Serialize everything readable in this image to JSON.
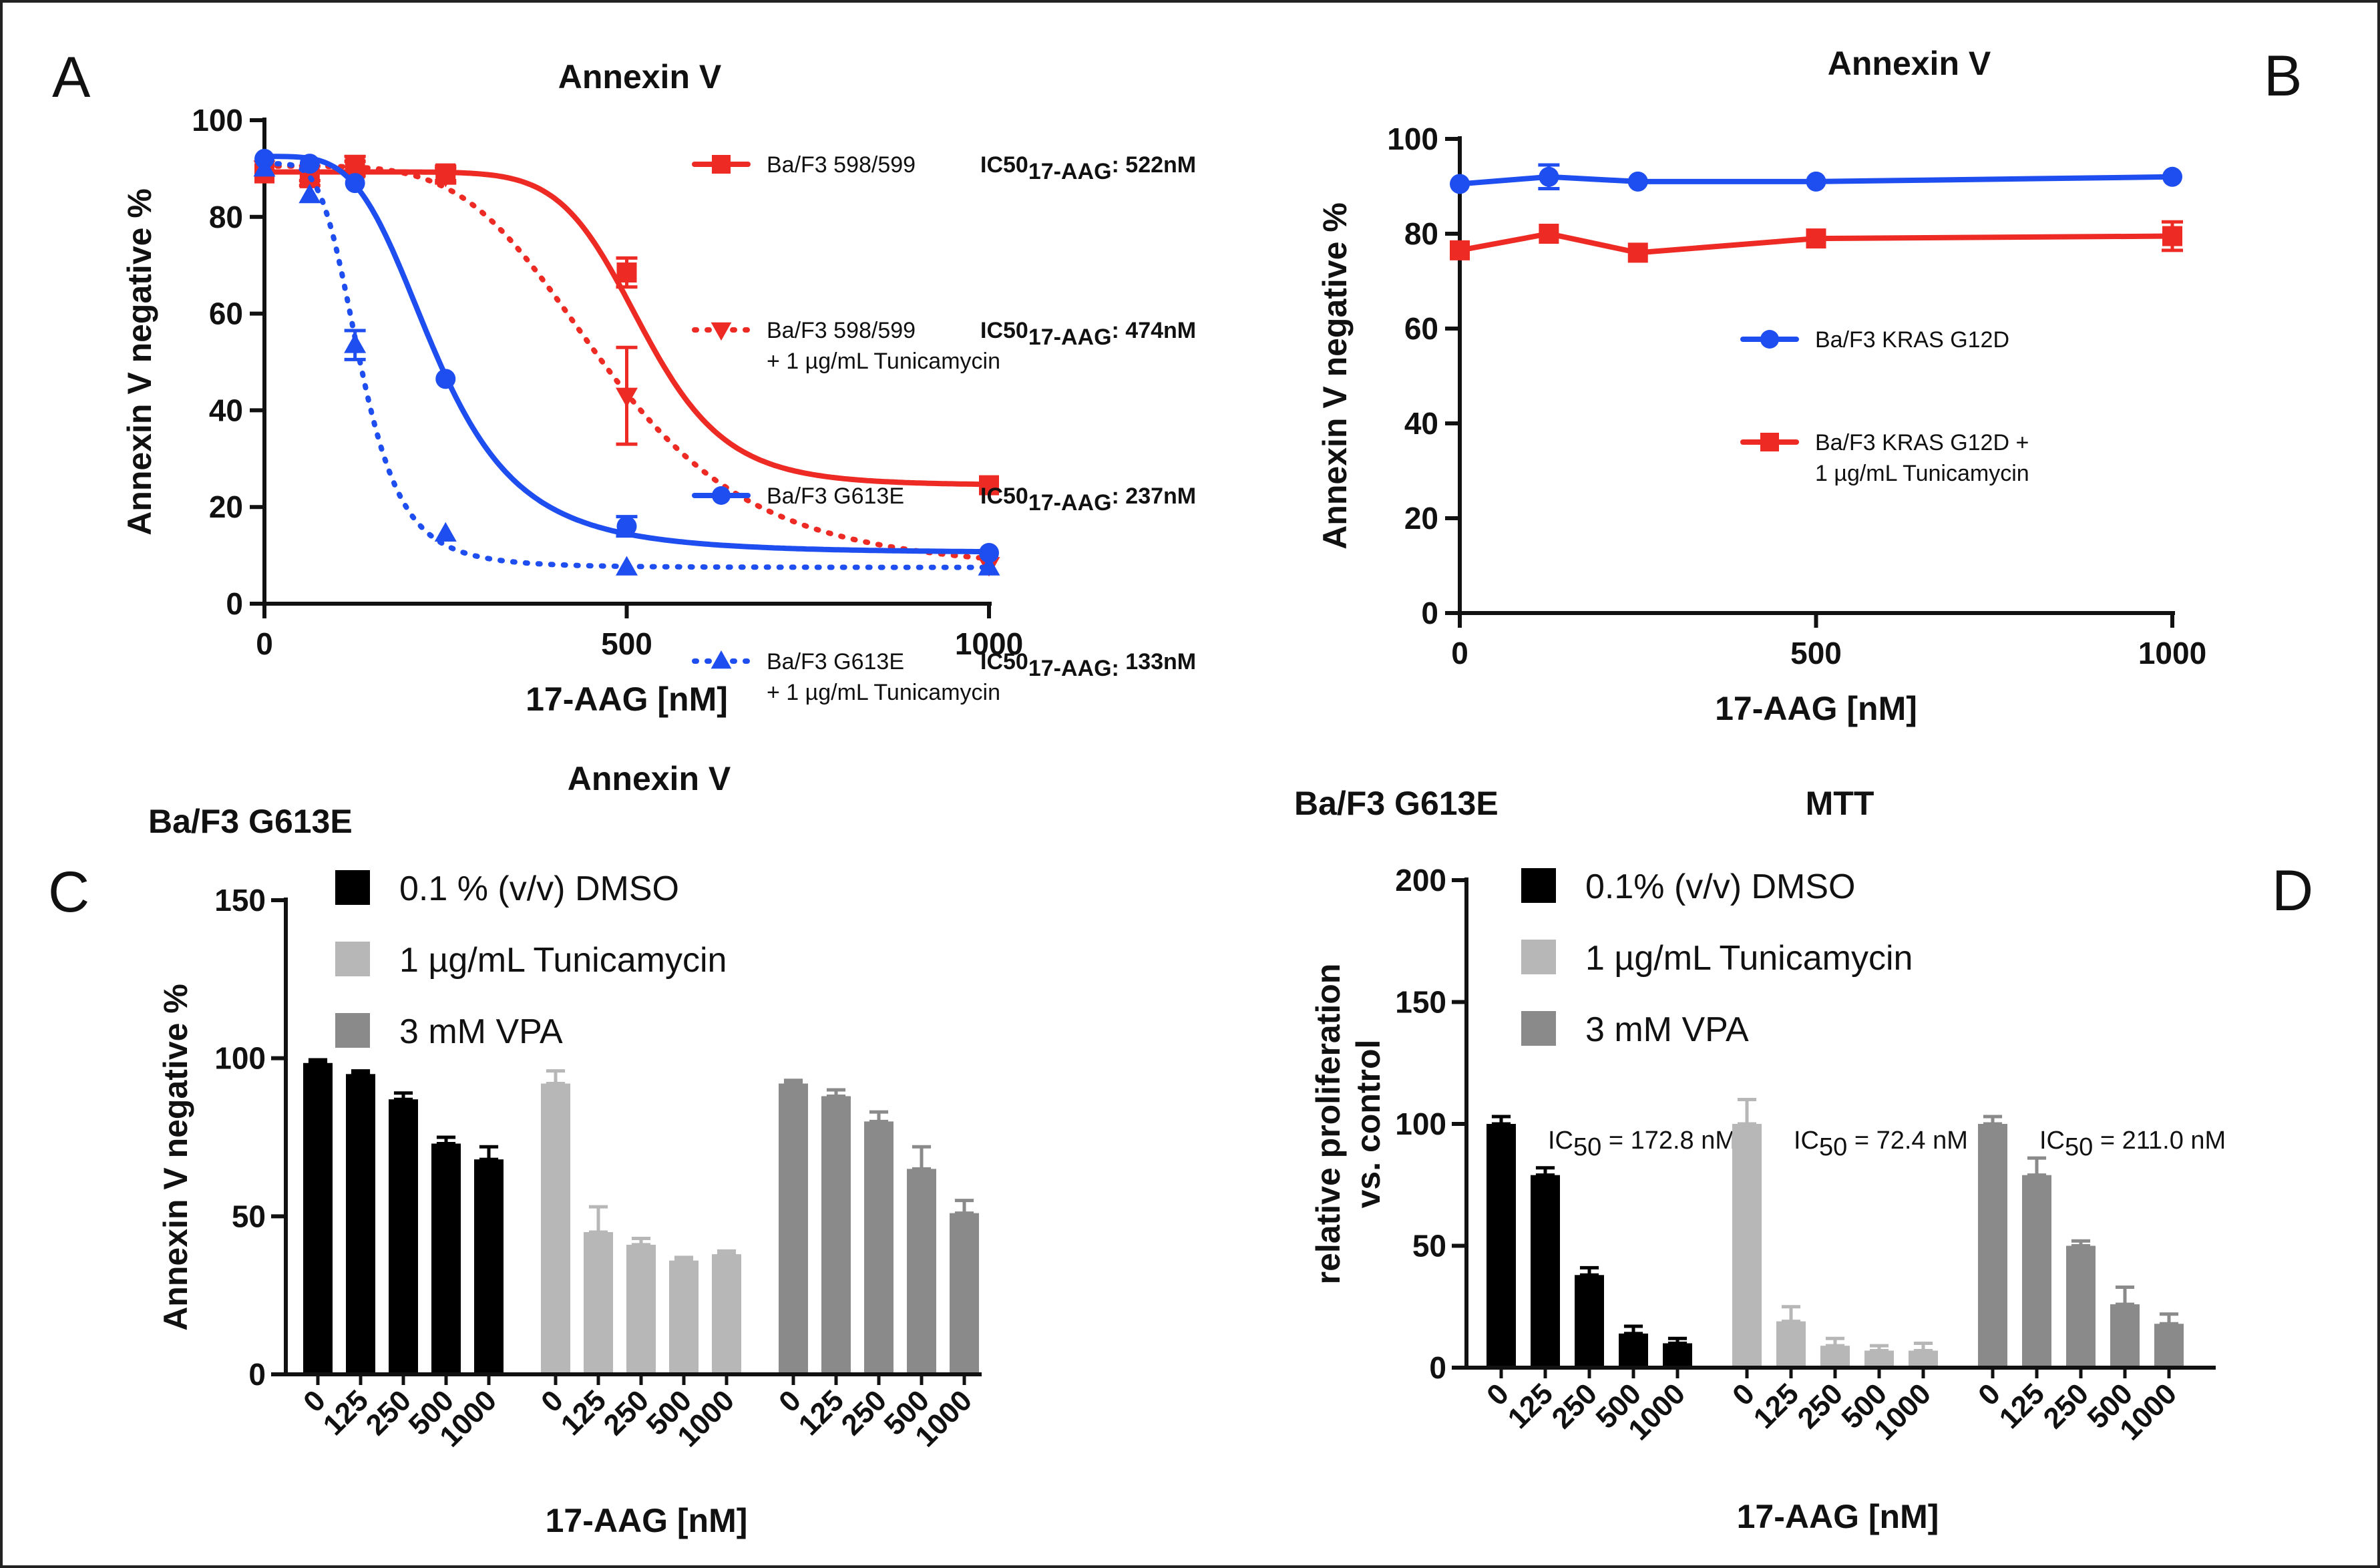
{
  "colors": {
    "red": "#ee2a24",
    "blue": "#1f4ef0",
    "black": "#000000",
    "light_gray": "#b7b7b7",
    "dark_gray": "#8a8a8a"
  },
  "chart_data": [
    {
      "id": "A",
      "panel_label": "A",
      "type": "line",
      "title": "Annexin V",
      "xlabel": "17-AAG [nM]",
      "ylabel": "Annexin V negative %",
      "xlim": [
        0,
        1000
      ],
      "ylim": [
        0,
        100
      ],
      "xticks": [
        0,
        500,
        1000
      ],
      "yticks": [
        0,
        20,
        40,
        60,
        80,
        100
      ],
      "series": [
        {
          "name": "Ba/F3 598/599",
          "name_line2": "",
          "ic50_prefix": "IC50",
          "ic50_sub": "17-AAG",
          "ic50_value": ": 522nM",
          "color": "#ee2a24",
          "dash": "solid",
          "marker": "square",
          "x": [
            0,
            62.5,
            125,
            250,
            500,
            1000
          ],
          "y": [
            89,
            88,
            90,
            89,
            68.5,
            24.5
          ],
          "err": [
            1,
            1.5,
            1.5,
            1.5,
            3,
            0.5
          ],
          "fit": {
            "top": 89.3,
            "bottom": 24.5,
            "ic50": 522,
            "hill": 9
          }
        },
        {
          "name": "Ba/F3 598/599",
          "name_line2": "+ 1 µg/mL Tunicamycin",
          "ic50_prefix": "IC50",
          "ic50_sub": "17-AAG",
          "ic50_value": ": 474nM",
          "color": "#ee2a24",
          "dash": "dotted",
          "marker": "triangle-down",
          "x": [
            0,
            62.5,
            125,
            250,
            500,
            1000
          ],
          "y": [
            90,
            89,
            91,
            88.5,
            43,
            8
          ],
          "err": [
            1,
            1.5,
            1.5,
            1.5,
            10,
            0.5
          ],
          "fit": {
            "top": 90.5,
            "bottom": 6.5,
            "ic50": 474,
            "hill": 4.5
          }
        },
        {
          "name": "Ba/F3 G613E",
          "name_line2": "",
          "ic50_prefix": "IC50",
          "ic50_sub": "17-AAG",
          "ic50_value": ": 237nM",
          "color": "#1f4ef0",
          "dash": "solid",
          "marker": "circle",
          "x": [
            0,
            62.5,
            125,
            250,
            500,
            1000
          ],
          "y": [
            92,
            91,
            87,
            46.5,
            16,
            10.5
          ],
          "err": [
            0.5,
            1,
            1,
            1,
            2,
            0.5
          ],
          "fit": {
            "top": 92.5,
            "bottom": 10.5,
            "ic50": 237,
            "hill": 4
          }
        },
        {
          "name": "Ba/F3 G613E",
          "name_line2": "+ 1 µg/mL Tunicamycin",
          "ic50_prefix": "IC50",
          "ic50_sub": "17-AAG:",
          "ic50_value": " 133nM",
          "color": "#1f4ef0",
          "dash": "dotted",
          "marker": "triangle-up",
          "x": [
            0,
            62.5,
            125,
            250,
            500,
            1000
          ],
          "y": [
            90,
            84.5,
            53.5,
            14.5,
            7.5,
            7.5
          ],
          "err": [
            1,
            1,
            3,
            1,
            0.5,
            0.5
          ],
          "fit": {
            "top": 91,
            "bottom": 7.5,
            "ic50": 133,
            "hill": 4.5
          }
        }
      ]
    },
    {
      "id": "B",
      "panel_label": "B",
      "type": "line",
      "title": "Annexin V",
      "xlabel": "17-AAG [nM]",
      "ylabel": "Annexin V negative %",
      "xlim": [
        0,
        1000
      ],
      "ylim": [
        0,
        100
      ],
      "xticks": [
        0,
        500,
        1000
      ],
      "yticks": [
        0,
        20,
        40,
        60,
        80,
        100
      ],
      "series": [
        {
          "name": "Ba/F3 KRAS G12D",
          "name_line2": "",
          "color": "#1f4ef0",
          "marker": "circle",
          "x": [
            0,
            125,
            250,
            500,
            1000
          ],
          "y": [
            90.5,
            92,
            91,
            91,
            92
          ],
          "err": [
            0.5,
            2.5,
            0.5,
            0.5,
            0.5
          ]
        },
        {
          "name": "Ba/F3 KRAS G12D +",
          "name_line2": "1 µg/mL Tunicamycin",
          "color": "#ee2a24",
          "marker": "square",
          "x": [
            0,
            125,
            250,
            500,
            1000
          ],
          "y": [
            76.5,
            80,
            76,
            79,
            79.5
          ],
          "err": [
            0.5,
            0.5,
            0.5,
            0.5,
            3
          ]
        }
      ]
    },
    {
      "id": "C",
      "panel_label": "C",
      "type": "bar",
      "title": "Annexin V",
      "subtitle": "Ba/F3 G613E",
      "xlabel": "17-AAG [nM]",
      "ylabel": "Annexin V negative %",
      "ylim": [
        0,
        150
      ],
      "yticks": [
        0,
        50,
        100,
        150
      ],
      "categories": [
        "0",
        "125",
        "250",
        "500",
        "1000"
      ],
      "series": [
        {
          "name": "0.1 % (v/v) DMSO",
          "color": "#000000",
          "values": [
            98.5,
            95,
            87,
            73,
            68
          ],
          "err": [
            1,
            1,
            2,
            2,
            4
          ]
        },
        {
          "name": "1 µg/mL Tunicamycin",
          "color": "#b7b7b7",
          "values": [
            92,
            45,
            41,
            36,
            38
          ],
          "err": [
            4,
            8,
            2,
            1,
            1
          ]
        },
        {
          "name": "3 mM VPA",
          "color": "#8a8a8a",
          "values": [
            92,
            88,
            80,
            65,
            51
          ],
          "err": [
            1,
            2,
            3,
            7,
            4
          ]
        }
      ]
    },
    {
      "id": "D",
      "panel_label": "D",
      "type": "bar",
      "title": "MTT",
      "subtitle": "Ba/F3 G613E",
      "xlabel": "17-AAG [nM]",
      "ylabel_line1": "relative proliferation",
      "ylabel_line2": "vs. control",
      "ylim": [
        0,
        200
      ],
      "yticks": [
        0,
        50,
        100,
        150,
        200
      ],
      "categories": [
        "0",
        "125",
        "250",
        "500",
        "1000"
      ],
      "series": [
        {
          "name": "0.1% (v/v) DMSO",
          "color": "#000000",
          "values": [
            100,
            79,
            38,
            14,
            10
          ],
          "err": [
            3,
            3,
            3,
            3,
            2
          ],
          "ic50_prefix": "IC",
          "ic50_sub": "50",
          "ic50_value": " = 172.8 nM"
        },
        {
          "name": "1 µg/mL Tunicamycin",
          "color": "#b7b7b7",
          "values": [
            100,
            19,
            9,
            7,
            7
          ],
          "err": [
            10,
            6,
            3,
            2,
            3
          ],
          "ic50_prefix": "IC",
          "ic50_sub": "50",
          "ic50_value": " = 72.4 nM"
        },
        {
          "name": "3 mM VPA",
          "color": "#8a8a8a",
          "values": [
            100,
            79,
            50,
            26,
            18
          ],
          "err": [
            3,
            7,
            2,
            7,
            4
          ],
          "ic50_prefix": "IC",
          "ic50_sub": "50",
          "ic50_value": " = 211.0 nM"
        }
      ]
    }
  ]
}
